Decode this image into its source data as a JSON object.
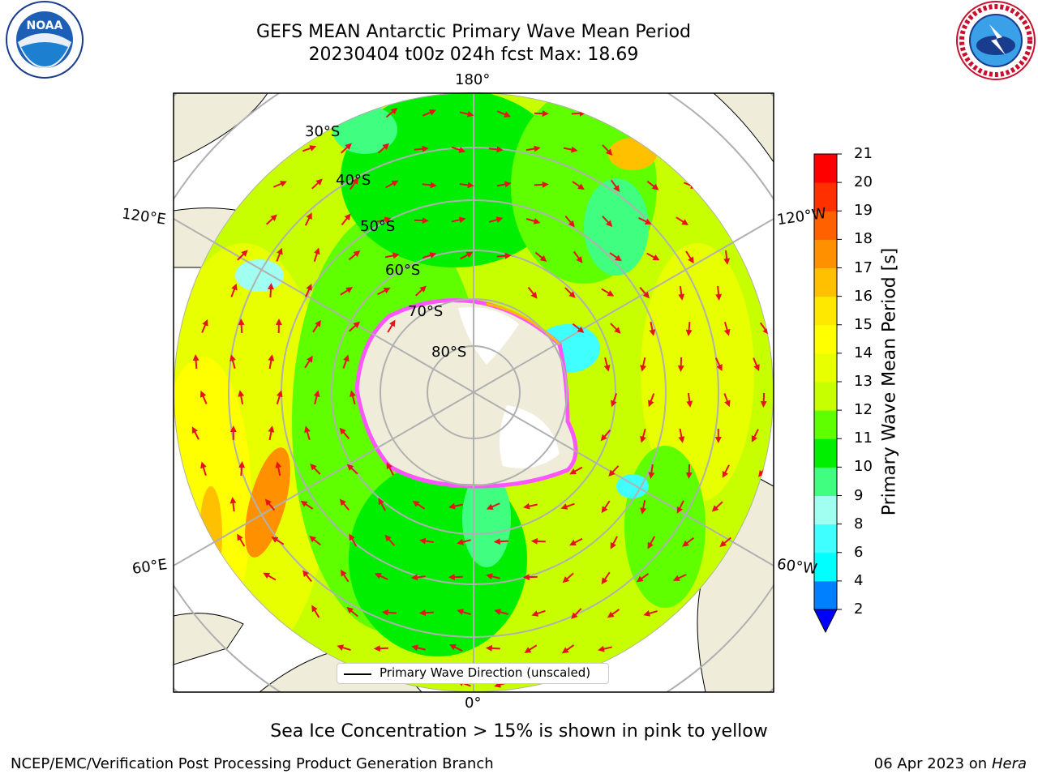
{
  "title": {
    "line1": "GEFS MEAN Antarctic Primary Wave Mean Period",
    "line2": "20230404 t00z 024h fcst   Max: 18.69"
  },
  "map": {
    "projection": "south polar stereographic",
    "lon_labels": {
      "top": "180°",
      "upper_left": "120°E",
      "upper_right": "120°W",
      "lower_left": "60°E",
      "lower_right": "60°W",
      "bottom": "0°"
    },
    "lat_labels": [
      "30°S",
      "40°S",
      "50°S",
      "60°S",
      "70°S",
      "80°S"
    ],
    "land_color": "#efedda",
    "ice_colors": [
      "#ff55ff",
      "#ffb800"
    ],
    "arrow_color": "#e8121b"
  },
  "legend": {
    "label": "Primary Wave Direction (unscaled)"
  },
  "colorbar": {
    "title": "Primary Wave Mean Period [s]",
    "ticks": [
      "2",
      "4",
      "6",
      "8",
      "9",
      "10",
      "11",
      "12",
      "13",
      "14",
      "15",
      "16",
      "17",
      "18",
      "19",
      "20",
      "21"
    ],
    "colors": [
      "#0000ff",
      "#0080ff",
      "#00ffff",
      "#40ffff",
      "#a0fff0",
      "#40ff80",
      "#00ee00",
      "#60ff00",
      "#c8ff00",
      "#e8ff00",
      "#ffff00",
      "#ffe800",
      "#ffc000",
      "#ff9000",
      "#ff6000",
      "#ff3000",
      "#ff0000"
    ],
    "extend": "min"
  },
  "logos": {
    "left": "NOAA",
    "right": "NATIONAL WEATHER SERVICE"
  },
  "caption": "Sea Ice Concentration > 15% is shown in pink to yellow",
  "footer": {
    "left": "NCEP/EMC/Verification Post Processing Product Generation Branch",
    "right_prefix": "06 Apr 2023 on ",
    "right_host": "Hera"
  }
}
